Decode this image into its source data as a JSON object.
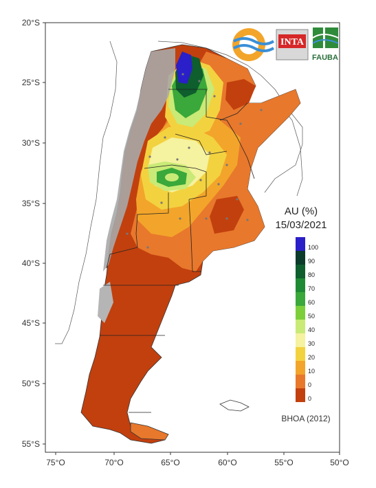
{
  "map": {
    "title": "AU (%)",
    "date": "15/03/2021",
    "credit": "BHOA (2012)",
    "lat_labels": [
      "20°S",
      "25°S",
      "30°S",
      "35°S",
      "40°S",
      "45°S",
      "50°S",
      "55°S"
    ],
    "lon_labels": [
      "75°O",
      "70°O",
      "65°O",
      "60°O",
      "55°O",
      "50°O"
    ],
    "legend": {
      "labels": [
        "100",
        "90",
        "80",
        "70",
        "60",
        "50",
        "40",
        "30",
        "20",
        "10",
        "0",
        "0"
      ],
      "colors": [
        "#2a1fc8",
        "#0b3b2a",
        "#0e5e2e",
        "#1f8a35",
        "#3aa83a",
        "#7ccf3a",
        "#c9ea76",
        "#f5f2a0",
        "#f3d240",
        "#f2a52a",
        "#e8782c",
        "#c2400e"
      ]
    },
    "logos": {
      "inta": "INTA",
      "fauba": "FAUBA"
    },
    "colors": {
      "frame": "#333333",
      "land_dry": "#c2400e",
      "land_orange": "#e8782c",
      "land_amber": "#f2a52a",
      "land_yellow": "#f3d240",
      "land_paleyellow": "#f5f2a0",
      "land_lightgreen": "#c9ea76",
      "land_green": "#3aa83a",
      "land_darkgreen": "#0e5e2e",
      "land_blue": "#2a1fc8",
      "no_data": "#a9a9a9"
    }
  }
}
